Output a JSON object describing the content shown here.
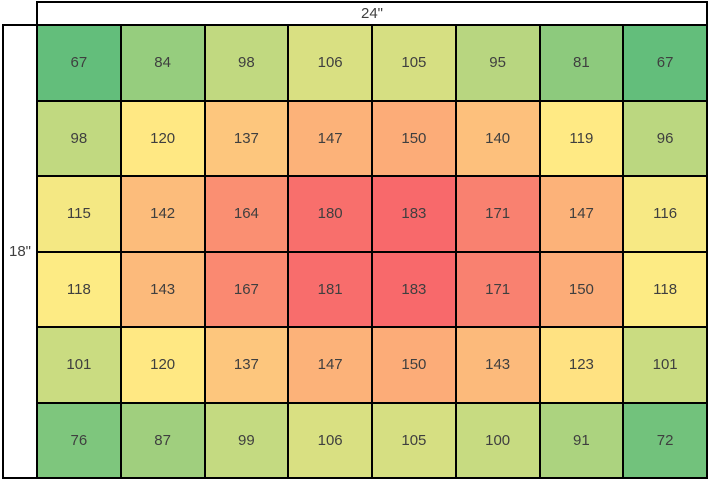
{
  "dimension_labels": {
    "top": "24\"",
    "left": "18\""
  },
  "chart_data": {
    "type": "heatmap",
    "rows": 6,
    "cols": 8,
    "width_label": "24\"",
    "height_label": "18\"",
    "values": [
      [
        67,
        84,
        98,
        106,
        105,
        95,
        81,
        67
      ],
      [
        98,
        120,
        137,
        147,
        150,
        140,
        119,
        96
      ],
      [
        115,
        142,
        164,
        180,
        183,
        171,
        147,
        116
      ],
      [
        118,
        143,
        167,
        181,
        183,
        171,
        150,
        118
      ],
      [
        101,
        120,
        137,
        147,
        150,
        143,
        123,
        101
      ],
      [
        76,
        87,
        99,
        106,
        105,
        100,
        91,
        72
      ]
    ],
    "value_min": 67,
    "value_mid": 118.5,
    "value_max": 183,
    "colormap": {
      "low": "#63BE7B",
      "mid": "#FFEB84",
      "high": "#F8696B"
    },
    "legend": "none",
    "grid": "on"
  },
  "colors": {
    "border": "#000000",
    "text": "#3F3F3F",
    "background": "#FFFFFF"
  }
}
